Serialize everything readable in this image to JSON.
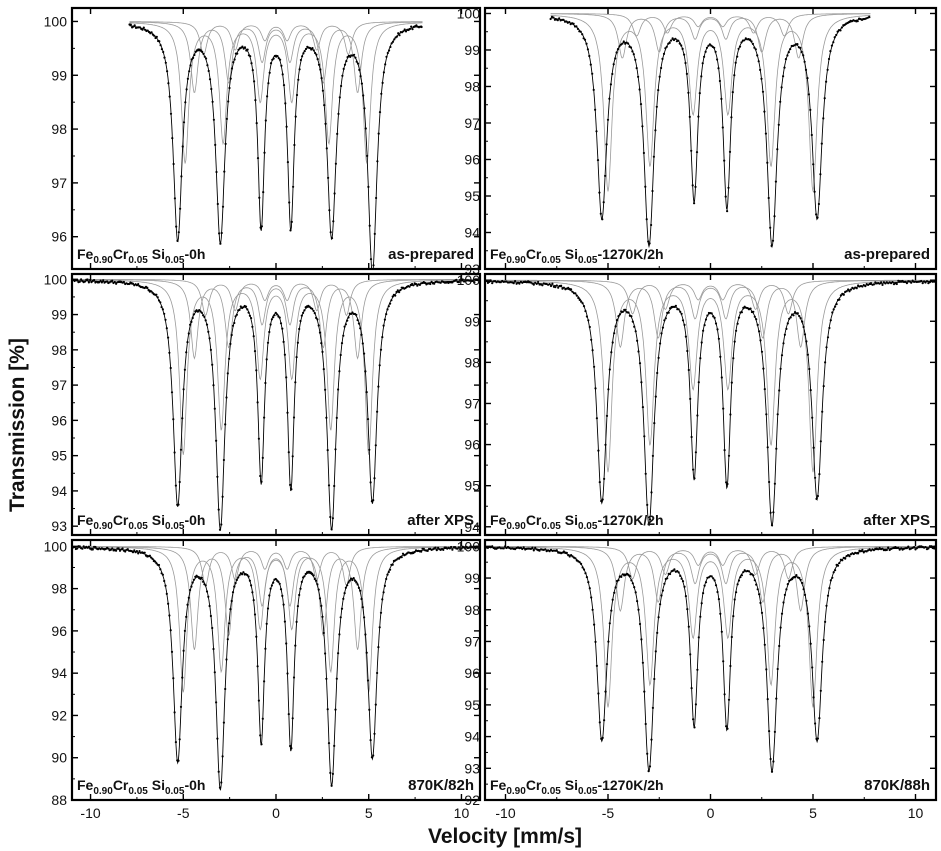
{
  "figure": {
    "y_axis_title": "Transmission [%]",
    "x_axis_title": "Velocity [mm/s]",
    "x_ticks": [
      "-10",
      "-5",
      "0",
      "5",
      "10"
    ],
    "x_range": [
      -11,
      11
    ],
    "colors": {
      "frame": "#000000",
      "data": "#000000",
      "subspectra": "#9a9a9a"
    }
  },
  "chart_data": [
    {
      "type": "scatter",
      "panel": "top-left",
      "sample_label": {
        "main": "Fe",
        "s1": "0.90",
        "el2": "Cr",
        "s2": "0.05",
        "el3": " Si",
        "s3": "0.05",
        "suffix": "-0h"
      },
      "condition": "as-prepared",
      "ylim": [
        95.4,
        100.25
      ],
      "yticks": [
        "100",
        "99",
        "98",
        "97",
        "96"
      ],
      "ytick_values": [
        100,
        99,
        98,
        97,
        96
      ],
      "x_extent": [
        -7.9,
        7.9
      ],
      "peaks": [
        {
          "v": -5.3,
          "d": 4.0,
          "w": 0.3
        },
        {
          "v": -3.0,
          "d": 4.0,
          "w": 0.3
        },
        {
          "v": -0.8,
          "d": 3.7,
          "w": 0.22
        },
        {
          "v": 0.8,
          "d": 3.7,
          "w": 0.22
        },
        {
          "v": 3.0,
          "d": 3.9,
          "w": 0.3
        },
        {
          "v": 5.2,
          "d": 4.6,
          "w": 0.3
        }
      ],
      "subspectra": [
        {
          "pos": [
            -4.9,
            -2.85,
            -0.85,
            0.85,
            2.85,
            4.9
          ],
          "depth": 2.6
        },
        {
          "pos": [
            -4.4,
            -2.55,
            -0.75,
            0.75,
            2.55,
            4.4
          ],
          "depth": 1.3
        },
        {
          "pos": [
            -3.9,
            -2.2,
            -0.6,
            0.6,
            2.2,
            3.9
          ],
          "depth": 0.6
        }
      ]
    },
    {
      "type": "scatter",
      "panel": "top-right",
      "sample_label": {
        "main": "Fe",
        "s1": "0.90",
        "el2": "Cr",
        "s2": "0.05",
        "el3": " Si",
        "s3": "0.05",
        "suffix": "-1270K/2h"
      },
      "condition": "as-prepared",
      "ylim": [
        93.0,
        100.15
      ],
      "yticks": [
        "100",
        "99",
        "98",
        "97",
        "96",
        "95",
        "94",
        "93"
      ],
      "ytick_values": [
        100,
        99,
        98,
        97,
        96,
        95,
        94,
        93
      ],
      "x_extent": [
        -7.8,
        7.8
      ],
      "peaks": [
        {
          "v": -5.3,
          "d": 5.5,
          "w": 0.3
        },
        {
          "v": -3.0,
          "d": 6.2,
          "w": 0.3
        },
        {
          "v": -0.8,
          "d": 4.9,
          "w": 0.22
        },
        {
          "v": 0.8,
          "d": 5.1,
          "w": 0.22
        },
        {
          "v": 3.0,
          "d": 6.2,
          "w": 0.3
        },
        {
          "v": 5.2,
          "d": 5.5,
          "w": 0.3
        }
      ],
      "subspectra": [
        {
          "pos": [
            -5.0,
            -2.95,
            -0.85,
            0.85,
            2.95,
            5.0
          ],
          "depth": 4.8
        },
        {
          "pos": [
            -4.3,
            -2.5,
            -0.75,
            0.75,
            2.5,
            4.3
          ],
          "depth": 1.2
        },
        {
          "pos": [
            -3.6,
            -2.1,
            -0.6,
            0.6,
            2.1,
            3.6
          ],
          "depth": 0.6
        }
      ]
    },
    {
      "type": "scatter",
      "panel": "middle-left",
      "sample_label": {
        "main": "Fe",
        "s1": "0.90",
        "el2": "Cr",
        "s2": "0.05",
        "el3": " Si",
        "s3": "0.05",
        "suffix": "-0h"
      },
      "condition": "after XPS",
      "ylim": [
        92.75,
        100.15
      ],
      "yticks": [
        "100",
        "99",
        "98",
        "97",
        "96",
        "95",
        "94",
        "93"
      ],
      "ytick_values": [
        100,
        99,
        98,
        97,
        96,
        95,
        94,
        93
      ],
      "x_extent": [
        -11,
        11
      ],
      "peaks": [
        {
          "v": -5.3,
          "d": 6.3,
          "w": 0.3
        },
        {
          "v": -3.0,
          "d": 6.9,
          "w": 0.3
        },
        {
          "v": -0.8,
          "d": 5.5,
          "w": 0.22
        },
        {
          "v": 0.8,
          "d": 5.7,
          "w": 0.22
        },
        {
          "v": 3.0,
          "d": 6.9,
          "w": 0.3
        },
        {
          "v": 5.2,
          "d": 6.2,
          "w": 0.3
        }
      ],
      "subspectra": [
        {
          "pos": [
            -5.0,
            -2.95,
            -0.85,
            0.85,
            2.95,
            5.0
          ],
          "depth": 4.9
        },
        {
          "pos": [
            -4.4,
            -2.55,
            -0.75,
            0.75,
            2.55,
            4.4
          ],
          "depth": 2.2
        },
        {
          "pos": [
            -3.8,
            -2.2,
            -0.6,
            0.6,
            2.2,
            3.8
          ],
          "depth": 1.0
        }
      ]
    },
    {
      "type": "scatter",
      "panel": "middle-right",
      "sample_label": {
        "main": "Fe",
        "s1": "0.90",
        "el2": "Cr",
        "s2": "0.05",
        "el3": " Si",
        "s3": "0.05",
        "suffix": "-1270K/2h"
      },
      "condition": "after XPS",
      "ylim": [
        93.8,
        100.15
      ],
      "yticks": [
        "100",
        "99",
        "98",
        "97",
        "96",
        "95",
        "94"
      ],
      "ytick_values": [
        100,
        99,
        98,
        97,
        96,
        95,
        94
      ],
      "x_extent": [
        -11,
        11
      ],
      "peaks": [
        {
          "v": -5.3,
          "d": 5.3,
          "w": 0.3
        },
        {
          "v": -3.0,
          "d": 5.8,
          "w": 0.3
        },
        {
          "v": -0.8,
          "d": 4.6,
          "w": 0.22
        },
        {
          "v": 0.8,
          "d": 4.8,
          "w": 0.22
        },
        {
          "v": 3.0,
          "d": 5.8,
          "w": 0.3
        },
        {
          "v": 5.2,
          "d": 5.2,
          "w": 0.3
        }
      ],
      "subspectra": [
        {
          "pos": [
            -5.0,
            -2.95,
            -0.85,
            0.85,
            2.95,
            5.0
          ],
          "depth": 4.6
        },
        {
          "pos": [
            -4.4,
            -2.55,
            -0.75,
            0.75,
            2.55,
            4.4
          ],
          "depth": 1.6
        },
        {
          "pos": [
            -3.8,
            -2.2,
            -0.6,
            0.6,
            2.2,
            3.8
          ],
          "depth": 0.8
        }
      ]
    },
    {
      "type": "scatter",
      "panel": "bottom-left",
      "sample_label": {
        "main": "Fe",
        "s1": "0.90",
        "el2": "Cr",
        "s2": "0.05",
        "el3": " Si",
        "s3": "0.05",
        "suffix": "-0h"
      },
      "condition": "870K/82h",
      "ylim": [
        88.0,
        100.3
      ],
      "yticks": [
        "100",
        "98",
        "96",
        "94",
        "92",
        "90",
        "88"
      ],
      "ytick_values": [
        100,
        98,
        96,
        94,
        92,
        90,
        88
      ],
      "x_extent": [
        -11,
        11
      ],
      "peaks": [
        {
          "v": -5.3,
          "d": 10.0,
          "w": 0.3
        },
        {
          "v": -3.0,
          "d": 11.2,
          "w": 0.3
        },
        {
          "v": -0.8,
          "d": 8.9,
          "w": 0.22
        },
        {
          "v": 0.8,
          "d": 9.2,
          "w": 0.22
        },
        {
          "v": 3.0,
          "d": 11.0,
          "w": 0.3
        },
        {
          "v": 5.2,
          "d": 9.8,
          "w": 0.3
        }
      ],
      "subspectra": [
        {
          "pos": [
            -5.0,
            -2.95,
            -0.85,
            0.85,
            2.95,
            5.0
          ],
          "depth": 6.8
        },
        {
          "pos": [
            -4.4,
            -2.55,
            -0.75,
            0.75,
            2.55,
            4.4
          ],
          "depth": 4.8
        },
        {
          "pos": [
            -3.8,
            -2.2,
            -0.6,
            0.6,
            2.2,
            3.8
          ],
          "depth": 1.8
        }
      ]
    },
    {
      "type": "scatter",
      "panel": "bottom-right",
      "sample_label": {
        "main": "Fe",
        "s1": "0.90",
        "el2": "Cr",
        "s2": "0.05",
        "el3": " Si",
        "s3": "0.05",
        "suffix": "-1270K/2h"
      },
      "condition": "870K/88h",
      "ylim": [
        92.0,
        100.2
      ],
      "yticks": [
        "100",
        "99",
        "98",
        "97",
        "96",
        "95",
        "94",
        "93",
        "92"
      ],
      "ytick_values": [
        100,
        99,
        98,
        97,
        96,
        95,
        94,
        93,
        92
      ],
      "x_extent": [
        -11,
        11
      ],
      "peaks": [
        {
          "v": -5.3,
          "d": 6.0,
          "w": 0.3
        },
        {
          "v": -3.0,
          "d": 6.9,
          "w": 0.3
        },
        {
          "v": -0.8,
          "d": 5.4,
          "w": 0.22
        },
        {
          "v": 0.8,
          "d": 5.5,
          "w": 0.22
        },
        {
          "v": 3.0,
          "d": 6.9,
          "w": 0.3
        },
        {
          "v": 5.2,
          "d": 6.0,
          "w": 0.3
        }
      ],
      "subspectra": [
        {
          "pos": [
            -5.0,
            -2.95,
            -0.85,
            0.85,
            2.95,
            5.0
          ],
          "depth": 5.0
        },
        {
          "pos": [
            -4.4,
            -2.55,
            -0.75,
            0.75,
            2.55,
            4.4
          ],
          "depth": 2.0
        },
        {
          "pos": [
            -3.8,
            -2.2,
            -0.6,
            0.6,
            2.2,
            3.8
          ],
          "depth": 1.0
        }
      ]
    }
  ]
}
